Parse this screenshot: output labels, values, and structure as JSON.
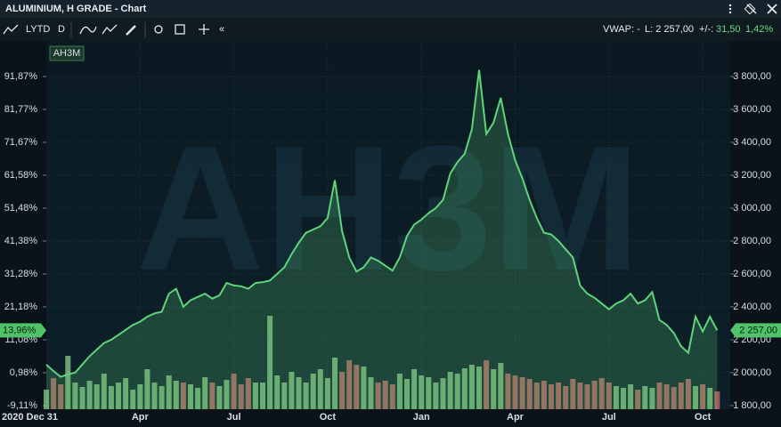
{
  "window": {
    "title": "ALUMINIUM, H GRADE - Chart"
  },
  "toolbar": {
    "period": "LYTD",
    "interval": "D",
    "vwap": "VWAP: -",
    "last": "L: 2 257,00",
    "change_label": "+/-:",
    "change": "31,50",
    "change_pct": "1,42%"
  },
  "chart_data": {
    "type": "area",
    "categories": [
      "2020 Dec 31",
      null,
      null,
      null,
      null,
      null,
      null,
      null,
      null,
      null,
      null,
      null,
      null,
      "Apr",
      null,
      null,
      null,
      null,
      null,
      null,
      null,
      null,
      null,
      null,
      null,
      null,
      "Jul",
      null,
      null,
      null,
      null,
      null,
      null,
      null,
      null,
      null,
      null,
      null,
      null,
      "Oct",
      null,
      null,
      null,
      null,
      null,
      null,
      null,
      null,
      null,
      null,
      null,
      null,
      "Jan",
      null,
      null,
      null,
      null,
      null,
      null,
      null,
      null,
      null,
      null,
      null,
      null,
      "Apr",
      null,
      null,
      null,
      null,
      null,
      null,
      null,
      null,
      null,
      null,
      null,
      null,
      "Jul",
      null,
      null,
      null,
      null,
      null,
      null,
      null,
      null,
      null,
      null,
      null,
      null,
      "Oct",
      null,
      null
    ],
    "series": [
      {
        "name": "AH3M",
        "color": "#5fd47a",
        "values": [
          2049,
          2010,
          1975,
          1990,
          2000,
          2050,
          2100,
          2140,
          2180,
          2200,
          2230,
          2260,
          2290,
          2310,
          2340,
          2360,
          2370,
          2480,
          2510,
          2400,
          2440,
          2460,
          2480,
          2450,
          2470,
          2545,
          2530,
          2525,
          2510,
          2545,
          2550,
          2560,
          2600,
          2640,
          2720,
          2790,
          2850,
          2870,
          2890,
          2940,
          3170,
          2860,
          2700,
          2615,
          2640,
          2700,
          2680,
          2650,
          2620,
          2700,
          2830,
          2900,
          2930,
          2970,
          3000,
          3050,
          3210,
          3280,
          3330,
          3480,
          3840,
          3450,
          3520,
          3670,
          3450,
          3290,
          3180,
          3050,
          2940,
          2850,
          2840,
          2800,
          2750,
          2700,
          2530,
          2480,
          2455,
          2420,
          2385,
          2420,
          2440,
          2480,
          2420,
          2440,
          2490,
          2320,
          2290,
          2240,
          2160,
          2120,
          2340,
          2250,
          2340,
          2257
        ]
      }
    ],
    "volume": {
      "up_color": "#8fcf8a",
      "down_color": "#d26f6f",
      "values": [
        22,
        35,
        28,
        60,
        30,
        25,
        32,
        28,
        40,
        26,
        30,
        35,
        22,
        28,
        45,
        30,
        26,
        38,
        32,
        30,
        28,
        24,
        36,
        30,
        26,
        33,
        40,
        28,
        35,
        30,
        30,
        105,
        38,
        30,
        42,
        36,
        30,
        40,
        45,
        35,
        58,
        42,
        55,
        50,
        48,
        36,
        30,
        32,
        28,
        40,
        34,
        45,
        38,
        36,
        30,
        35,
        42,
        40,
        46,
        50,
        48,
        55,
        45,
        52,
        40,
        38,
        36,
        34,
        30,
        32,
        28,
        30,
        26,
        34,
        30,
        28,
        32,
        35,
        30,
        26,
        24,
        28,
        22,
        26,
        24,
        30,
        28,
        25,
        30,
        34,
        26,
        28,
        24,
        20
      ]
    },
    "ylim": [
      1778,
      4016
    ],
    "yticks": [
      {
        "value": 1800,
        "label": "1 800,00"
      },
      {
        "value": 2000,
        "label": "2 000,00"
      },
      {
        "value": 2200,
        "label": "2 200,00"
      },
      {
        "value": 2400,
        "label": "2 400,00"
      },
      {
        "value": 2600,
        "label": "2 600,00"
      },
      {
        "value": 2800,
        "label": "2 800,00"
      },
      {
        "value": 3000,
        "label": "3 000,00"
      },
      {
        "value": 3200,
        "label": "3 200,00"
      },
      {
        "value": 3400,
        "label": "3 400,00"
      },
      {
        "value": 3600,
        "label": "3 600,00"
      },
      {
        "value": 3800,
        "label": "3 800,00"
      }
    ],
    "y2lim": [
      -10.22,
      102.78
    ],
    "y2ticks": [
      {
        "value": -9.11,
        "label": "-9,11%"
      },
      {
        "value": 0.98,
        "label": "0,98%"
      },
      {
        "value": 11.08,
        "label": "11,08%"
      },
      {
        "value": 21.18,
        "label": "21,18%"
      },
      {
        "value": 31.28,
        "label": "31,28%"
      },
      {
        "value": 41.38,
        "label": "41,38%"
      },
      {
        "value": 51.48,
        "label": "51,48%"
      },
      {
        "value": 61.58,
        "label": "61,58%"
      },
      {
        "value": 71.67,
        "label": "71,67%"
      },
      {
        "value": 81.77,
        "label": "81,77%"
      },
      {
        "value": 91.87,
        "label": "91,87%"
      }
    ],
    "last_price": {
      "value": 2257,
      "label": "2 257,00"
    },
    "last_pct": {
      "value": 13.96,
      "label": "13,96%"
    },
    "grid": true
  }
}
